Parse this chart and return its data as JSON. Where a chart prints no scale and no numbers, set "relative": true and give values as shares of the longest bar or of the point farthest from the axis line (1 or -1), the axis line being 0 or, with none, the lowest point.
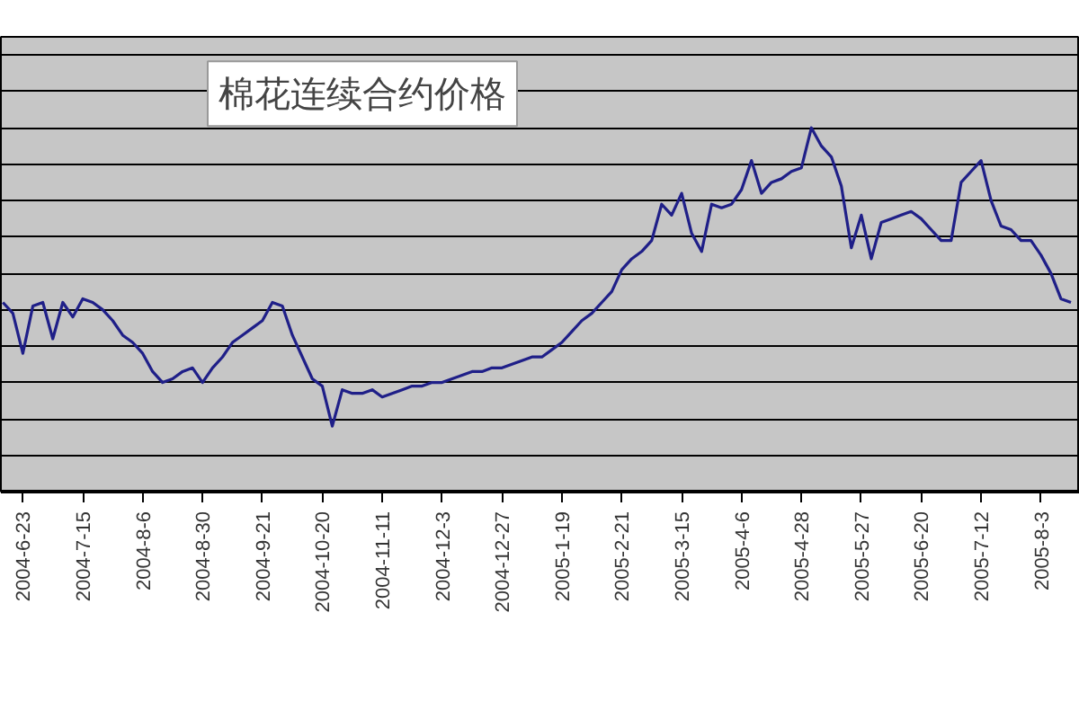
{
  "chart_data": {
    "type": "line",
    "title": "棉花连续合约价格",
    "relative": true,
    "grid": "y",
    "color": "#1f1f88",
    "categories": [
      null,
      null,
      "2004-6-23",
      null,
      null,
      null,
      null,
      null,
      "2004-7-15",
      null,
      null,
      null,
      null,
      null,
      "2004-8-6",
      null,
      null,
      null,
      null,
      null,
      "2004-8-30",
      null,
      null,
      null,
      null,
      null,
      "2004-9-21",
      null,
      null,
      null,
      null,
      null,
      "2004-10-20",
      null,
      null,
      null,
      null,
      null,
      "2004-11-11",
      null,
      null,
      null,
      null,
      null,
      "2004-12-3",
      null,
      null,
      null,
      null,
      null,
      "2004-12-27",
      null,
      null,
      null,
      null,
      null,
      "2005-1-19",
      null,
      null,
      null,
      null,
      null,
      "2005-2-21",
      null,
      null,
      null,
      null,
      null,
      "2005-3-15",
      null,
      null,
      null,
      null,
      null,
      "2005-4-6",
      null,
      null,
      null,
      null,
      null,
      "2005-4-28",
      null,
      null,
      null,
      null,
      null,
      "2005-5-27",
      null,
      null,
      null,
      null,
      null,
      "2005-6-20",
      null,
      null,
      null,
      null,
      null,
      "2005-7-12",
      null,
      null,
      null,
      null,
      null,
      "2005-8-3",
      null,
      null,
      null
    ],
    "values": [
      0.52,
      0.49,
      0.38,
      0.51,
      0.52,
      0.42,
      0.52,
      0.48,
      0.53,
      0.52,
      0.5,
      0.47,
      0.43,
      0.41,
      0.38,
      0.33,
      0.3,
      0.31,
      0.33,
      0.34,
      0.3,
      0.34,
      0.37,
      0.41,
      0.43,
      0.45,
      0.47,
      0.52,
      0.51,
      0.43,
      0.37,
      0.31,
      0.29,
      0.18,
      0.28,
      0.27,
      0.27,
      0.28,
      0.26,
      0.27,
      0.28,
      0.29,
      0.29,
      0.3,
      0.3,
      0.31,
      0.32,
      0.33,
      0.33,
      0.34,
      0.34,
      0.35,
      0.36,
      0.37,
      0.37,
      0.39,
      0.41,
      0.44,
      0.47,
      0.49,
      0.52,
      0.55,
      0.61,
      0.64,
      0.66,
      0.69,
      0.79,
      0.76,
      0.82,
      0.71,
      0.66,
      0.79,
      0.78,
      0.79,
      0.83,
      0.91,
      0.82,
      0.85,
      0.86,
      0.88,
      0.89,
      1.0,
      0.95,
      0.92,
      0.84,
      0.67,
      0.76,
      0.64,
      0.74,
      0.75,
      0.76,
      0.77,
      0.75,
      0.72,
      0.69,
      0.69,
      0.85,
      0.88,
      0.91,
      0.8,
      0.73,
      0.72,
      0.69,
      0.69,
      0.65,
      0.6,
      0.53,
      0.52
    ]
  }
}
